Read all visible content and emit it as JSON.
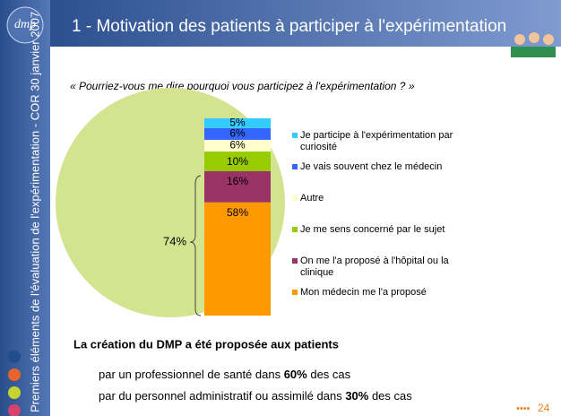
{
  "logo": "dmp",
  "sidebar_text": "Premiers éléments de l'évaluation de l'expérimentation - COR 30 janvier 2007",
  "chart_data": {
    "type": "stacked_bar",
    "title": "1 - Motivation des patients à participer à l'expérimentation",
    "subtitle": "« Pourriez-vous me dire pourquoi vous participez à l'expérimentation ? »",
    "annotation": "74%",
    "series": [
      {
        "name": "Mon médecin me l'a proposé",
        "color": "#ff9900",
        "values": [
          58
        ],
        "value_labels": [
          "58%"
        ]
      },
      {
        "name": "On me l'a proposé à l'hôpital ou la clinique",
        "color": "#993366",
        "values": [
          16
        ],
        "value_labels": [
          "16%"
        ]
      },
      {
        "name": "Je me sens concerné par le sujet",
        "color": "#99cc00",
        "values": [
          10
        ],
        "value_labels": [
          "10%"
        ]
      },
      {
        "name": "Autre",
        "color": "#ffffcc",
        "values": [
          6
        ],
        "value_labels": [
          "6%"
        ]
      },
      {
        "name": "Je vais souvent chez le médecin",
        "color": "#3366ff",
        "values": [
          6
        ],
        "value_labels": [
          "6%"
        ]
      },
      {
        "name": "Je participe à l'expérimentation par curiosité",
        "color": "#33ccff",
        "values": [
          5
        ],
        "value_labels": [
          "5%"
        ]
      }
    ]
  },
  "summary": {
    "heading": "La création du DMP a été proposée aux patients",
    "lines": [
      {
        "before": "par un professionnel de santé dans ",
        "bold": "60%",
        "after": " des cas"
      },
      {
        "before": "par du personnel administratif ou assimilé dans ",
        "bold": "30%",
        "after": " des cas"
      }
    ]
  },
  "page_number": 24
}
